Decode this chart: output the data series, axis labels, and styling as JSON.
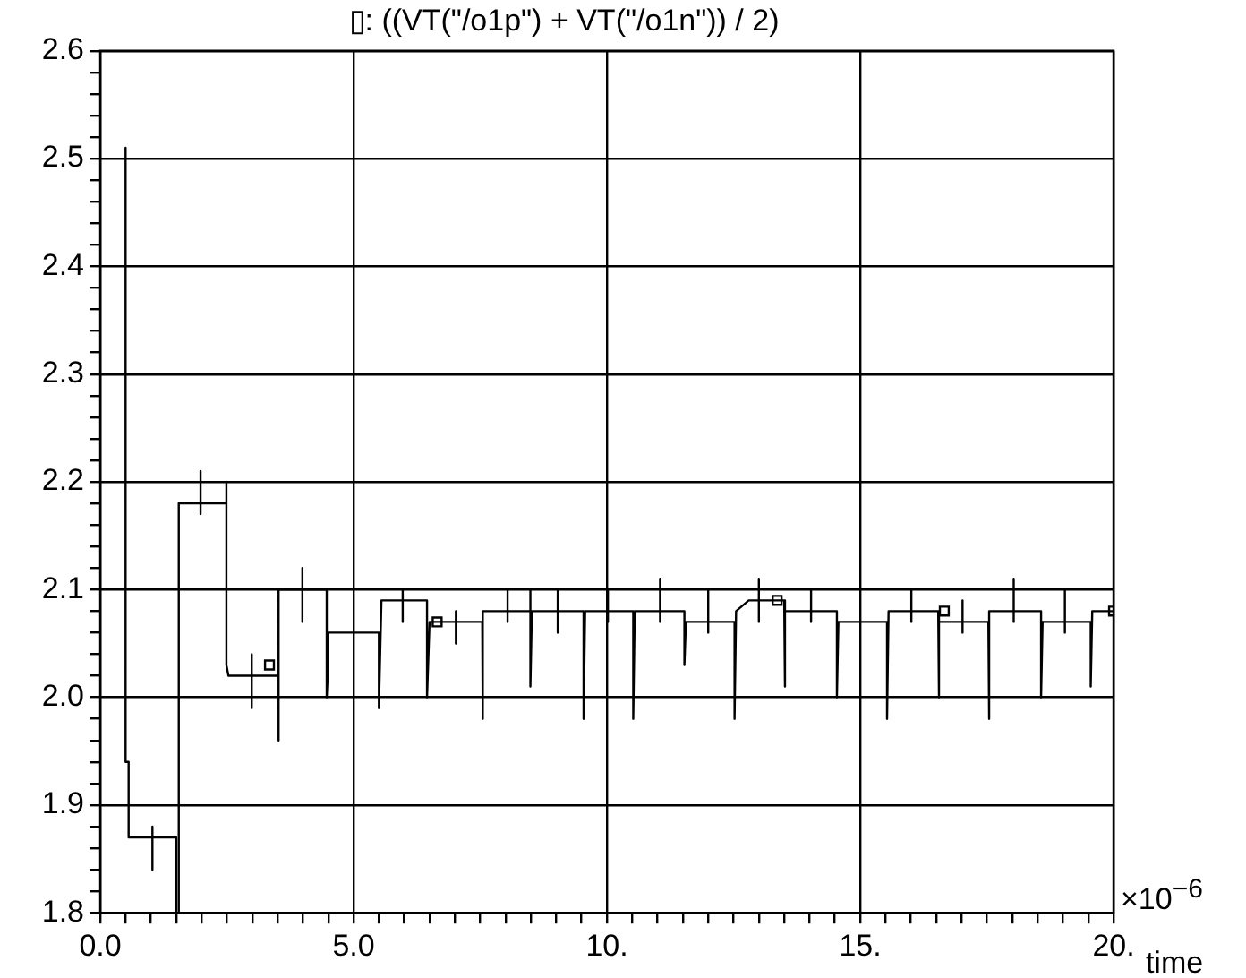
{
  "chart_data": {
    "type": "line",
    "title": "▯: ((VT(\"/o1p\") + VT(\"/o1n\")) / 2)",
    "xlabel": "time",
    "annotations": [
      "×10$^{−6}$"
    ],
    "series": [
      {
        "color": "#000000",
        "x": [
          0.5,
          0.5,
          0.56,
          0.56,
          1.03,
          1.03,
          1.03,
          1.03,
          1.5,
          1.5,
          1.55,
          1.55,
          1.98,
          1.98,
          1.98,
          1.98,
          2.49,
          2.49,
          2.49,
          2.53,
          2.99,
          2.99,
          2.99,
          2.99,
          3.52,
          3.52,
          3.52,
          3.99,
          3.99,
          3.99,
          3.99,
          4.47,
          4.47,
          4.5,
          4.5,
          5.5,
          5.5,
          5.55,
          5.97,
          5.97,
          5.97,
          5.97,
          6.45,
          6.45,
          6.5,
          7.02,
          7.02,
          7.02,
          7.02,
          7.54,
          7.54,
          7.56,
          8.04,
          8.04,
          8.04,
          8.04,
          8.49,
          8.49,
          8.49,
          8.52,
          9.03,
          9.03,
          9.03,
          9.03,
          9.54,
          9.54,
          9.57,
          10.02,
          10.02,
          10.02,
          10.02,
          10.52,
          10.52,
          10.55,
          11.05,
          11.05,
          11.05,
          11.05,
          11.53,
          11.53,
          11.56,
          12.0,
          12.0,
          12.0,
          12.0,
          12.52,
          12.52,
          12.55,
          12.8,
          13.0,
          13.0,
          13.0,
          13.0,
          13.5,
          13.5,
          13.53,
          14.03,
          14.03,
          14.03,
          14.03,
          14.54,
          14.54,
          14.57,
          15.53,
          15.53,
          15.56,
          16.01,
          16.01,
          16.01,
          16.01,
          16.54,
          16.54,
          16.57,
          17.02,
          17.02,
          17.02,
          17.02,
          17.53,
          17.53,
          17.56,
          18.03,
          18.03,
          18.03,
          18.03,
          18.57,
          18.57,
          18.6,
          19.04,
          19.04,
          19.04,
          19.04,
          19.55,
          19.55,
          19.58,
          20
        ],
        "values": [
          2.51,
          1.94,
          1.94,
          1.87,
          1.87,
          1.88,
          1.84,
          1.87,
          1.87,
          1.8,
          1.8,
          2.18,
          2.18,
          2.21,
          2.17,
          2.18,
          2.18,
          2.2,
          2.03,
          2.02,
          2.02,
          2.04,
          1.99,
          2.02,
          2.02,
          1.96,
          2.1,
          2.1,
          2.12,
          2.07,
          2.1,
          2.1,
          2.0,
          2.03,
          2.06,
          2.06,
          1.99,
          2.09,
          2.09,
          2.1,
          2.07,
          2.09,
          2.09,
          2.0,
          2.07,
          2.07,
          2.08,
          2.05,
          2.07,
          2.07,
          1.98,
          2.08,
          2.08,
          2.1,
          2.07,
          2.08,
          2.08,
          2.1,
          2.01,
          2.08,
          2.08,
          2.1,
          2.06,
          2.08,
          2.08,
          1.98,
          2.08,
          2.08,
          2.1,
          2.07,
          2.08,
          2.08,
          1.98,
          2.08,
          2.08,
          2.11,
          2.07,
          2.08,
          2.08,
          2.03,
          2.07,
          2.07,
          2.1,
          2.06,
          2.07,
          2.07,
          1.98,
          2.08,
          2.09,
          2.09,
          2.11,
          2.07,
          2.09,
          2.09,
          2.01,
          2.08,
          2.08,
          2.1,
          2.07,
          2.08,
          2.08,
          2.0,
          2.07,
          2.07,
          1.98,
          2.08,
          2.08,
          2.1,
          2.07,
          2.08,
          2.08,
          2.0,
          2.07,
          2.07,
          2.09,
          2.06,
          2.07,
          2.07,
          1.98,
          2.08,
          2.08,
          2.11,
          2.07,
          2.08,
          2.08,
          2.0,
          2.07,
          2.07,
          2.1,
          2.06,
          2.07,
          2.07,
          2.01,
          2.08,
          2.08
        ]
      },
      {
        "type": "scatter",
        "color": "#000000",
        "marker": "square",
        "x": [
          3.34,
          6.65,
          13.36,
          16.66,
          20
        ],
        "values": [
          2.03,
          2.07,
          2.09,
          2.08,
          2.08
        ]
      }
    ],
    "xlim": [
      0,
      20
    ],
    "xticks": [
      {
        "value": 0,
        "label": "0.0"
      },
      {
        "value": 0.5,
        "label": null
      },
      {
        "value": 1,
        "label": null
      },
      {
        "value": 1.5,
        "label": null
      },
      {
        "value": 2,
        "label": null
      },
      {
        "value": 2.5,
        "label": null
      },
      {
        "value": 3,
        "label": null
      },
      {
        "value": 3.5,
        "label": null
      },
      {
        "value": 4,
        "label": null
      },
      {
        "value": 4.5,
        "label": null
      },
      {
        "value": 5,
        "label": "5.0"
      },
      {
        "value": 5.5,
        "label": null
      },
      {
        "value": 6,
        "label": null
      },
      {
        "value": 6.5,
        "label": null
      },
      {
        "value": 7,
        "label": null
      },
      {
        "value": 7.5,
        "label": null
      },
      {
        "value": 8,
        "label": null
      },
      {
        "value": 8.5,
        "label": null
      },
      {
        "value": 9,
        "label": null
      },
      {
        "value": 9.5,
        "label": null
      },
      {
        "value": 10,
        "label": "10."
      },
      {
        "value": 10.5,
        "label": null
      },
      {
        "value": 11,
        "label": null
      },
      {
        "value": 11.5,
        "label": null
      },
      {
        "value": 12,
        "label": null
      },
      {
        "value": 12.5,
        "label": null
      },
      {
        "value": 13,
        "label": null
      },
      {
        "value": 13.5,
        "label": null
      },
      {
        "value": 14,
        "label": null
      },
      {
        "value": 14.5,
        "label": null
      },
      {
        "value": 15,
        "label": "15."
      },
      {
        "value": 15.5,
        "label": null
      },
      {
        "value": 16,
        "label": null
      },
      {
        "value": 16.5,
        "label": null
      },
      {
        "value": 17,
        "label": null
      },
      {
        "value": 17.5,
        "label": null
      },
      {
        "value": 18,
        "label": null
      },
      {
        "value": 18.5,
        "label": null
      },
      {
        "value": 19,
        "label": null
      },
      {
        "value": 19.5,
        "label": null
      },
      {
        "value": 20,
        "label": "20."
      }
    ],
    "ylim": [
      1.8,
      2.6
    ],
    "yticks": [
      1.8,
      {
        "value": 1.82,
        "label": null
      },
      {
        "value": 1.84,
        "label": null
      },
      {
        "value": 1.86,
        "label": null
      },
      {
        "value": 1.88,
        "label": null
      },
      1.9,
      {
        "value": 1.92,
        "label": null
      },
      {
        "value": 1.94,
        "label": null
      },
      {
        "value": 1.96,
        "label": null
      },
      {
        "value": 1.98,
        "label": null
      },
      {
        "value": 2.0,
        "label": "2.0"
      },
      {
        "value": 2.02,
        "label": null
      },
      {
        "value": 2.04,
        "label": null
      },
      {
        "value": 2.06,
        "label": null
      },
      {
        "value": 2.08,
        "label": null
      },
      2.1,
      {
        "value": 2.12,
        "label": null
      },
      {
        "value": 2.14,
        "label": null
      },
      {
        "value": 2.16,
        "label": null
      },
      {
        "value": 2.18,
        "label": null
      },
      2.2,
      {
        "value": 2.22,
        "label": null
      },
      {
        "value": 2.24,
        "label": null
      },
      {
        "value": 2.26,
        "label": null
      },
      {
        "value": 2.28,
        "label": null
      },
      2.3,
      {
        "value": 2.32,
        "label": null
      },
      {
        "value": 2.34,
        "label": null
      },
      {
        "value": 2.36,
        "label": null
      },
      {
        "value": 2.38,
        "label": null
      },
      2.4,
      {
        "value": 2.42,
        "label": null
      },
      {
        "value": 2.44,
        "label": null
      },
      {
        "value": 2.46,
        "label": null
      },
      {
        "value": 2.48,
        "label": null
      },
      2.5,
      {
        "value": 2.52,
        "label": null
      },
      {
        "value": 2.54,
        "label": null
      },
      {
        "value": 2.56,
        "label": null
      },
      {
        "value": 2.58,
        "label": null
      },
      2.6
    ],
    "grid": true,
    "legend": false,
    "line_style": "solid",
    "marker": "none"
  }
}
